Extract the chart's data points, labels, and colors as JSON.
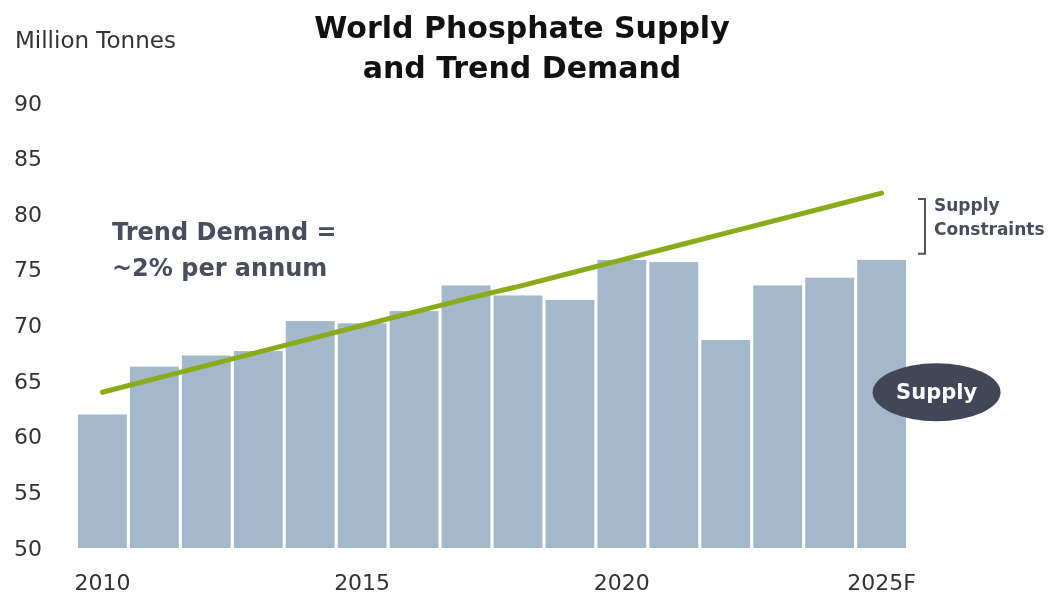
{
  "chart_data": {
    "type": "bar",
    "title": "World Phosphate Supply and Trend Demand",
    "ylabel": "Million Tonnes",
    "categories": [
      "2010",
      null,
      null,
      null,
      null,
      "2015",
      null,
      null,
      null,
      null,
      "2020",
      null,
      null,
      null,
      null,
      "2025F"
    ],
    "series": [
      {
        "name": "Supply",
        "color": "#a3b9cb",
        "values": [
          62.0,
          66.3,
          67.3,
          67.7,
          70.4,
          70.2,
          71.3,
          73.6,
          72.7,
          72.3,
          75.9,
          75.7,
          68.7,
          73.6,
          74.3,
          75.9
        ]
      },
      {
        "type": "line",
        "color": "#8aab1a",
        "values": [
          64.0,
          65.2,
          66.4,
          67.6,
          68.8,
          70.0,
          71.2,
          72.4,
          73.5,
          74.7,
          75.9,
          77.1,
          78.3,
          79.5,
          80.7,
          81.9
        ]
      }
    ],
    "annotations": [
      "Trend Demand = ~2% per annum",
      "Supply Constraints"
    ],
    "ylim": [
      50,
      90
    ],
    "yticks": [
      50,
      55,
      60,
      65,
      70,
      75,
      80,
      85,
      90
    ],
    "grid": false
  }
}
